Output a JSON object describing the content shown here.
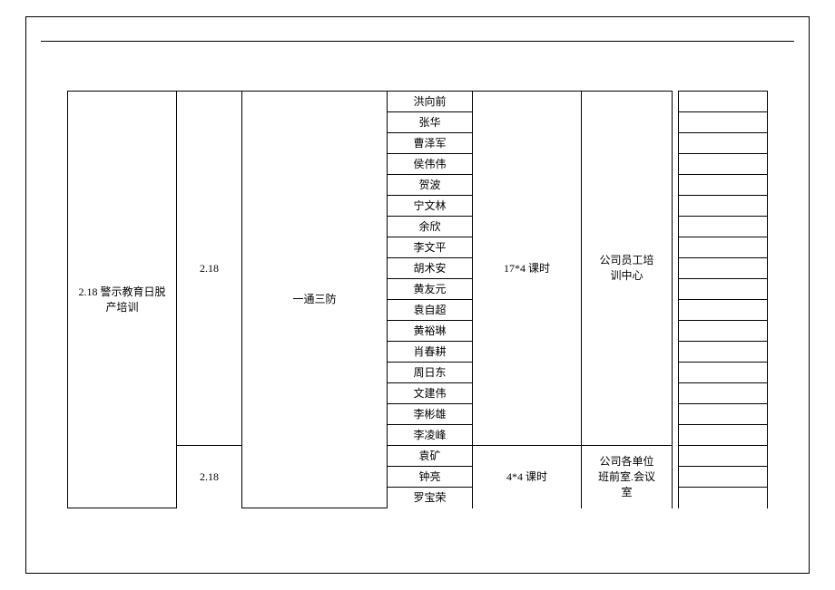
{
  "layout": {
    "outer_border_color": "#000000",
    "background_color": "#ffffff",
    "font_size": 12
  },
  "col1": {
    "title_line1": "2.18 警示教育日脱",
    "title_line2": "产培训"
  },
  "col2": {
    "date1": "2.18",
    "date2": "2.18"
  },
  "col3": {
    "topic": "一通三防"
  },
  "col4": {
    "names": [
      "洪向前",
      "张华",
      "曹泽军",
      "侯伟伟",
      "贺波",
      "宁文林",
      "余欣",
      "李文平",
      "胡术安",
      "黄友元",
      "袁自超",
      "黄裕琳",
      "肖春耕",
      "周日东",
      "文建伟",
      "李彬雄",
      "李凌峰",
      "袁矿",
      "钟亮",
      "罗宝荣"
    ]
  },
  "col5": {
    "hours1": "17*4 课时",
    "hours2": "4*4 课时"
  },
  "col6": {
    "location1_line1": "公司员工培",
    "location1_line2": "训中心",
    "location2_line1": "公司各单位",
    "location2_line2": "班前室.会议",
    "location2_line3": "室"
  },
  "side_rows": 20
}
